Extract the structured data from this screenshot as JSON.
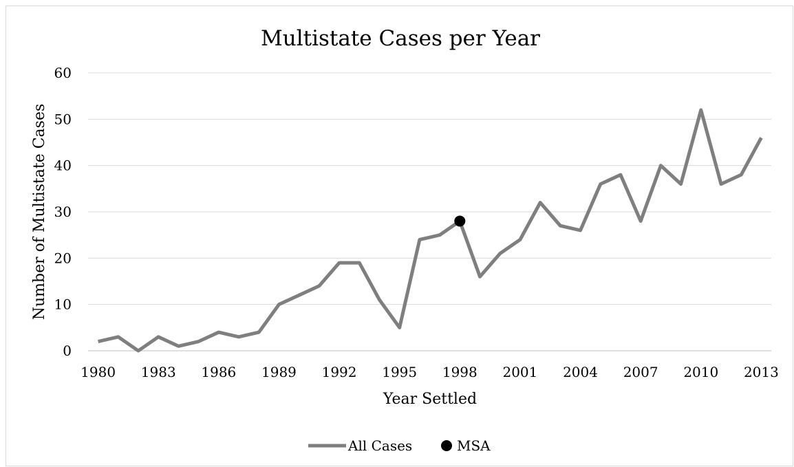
{
  "chart_data": {
    "type": "line",
    "title": "Multistate Cases per Year",
    "xlabel": "Year Settled",
    "ylabel": "Number of Multistate Cases",
    "x": [
      1980,
      1981,
      1982,
      1983,
      1984,
      1985,
      1986,
      1987,
      1988,
      1989,
      1990,
      1991,
      1992,
      1993,
      1994,
      1995,
      1996,
      1997,
      1998,
      1999,
      2000,
      2001,
      2002,
      2003,
      2004,
      2005,
      2006,
      2007,
      2008,
      2009,
      2010,
      2011,
      2012,
      2013
    ],
    "x_tick_labels": [
      "1980",
      "1983",
      "1986",
      "1989",
      "1992",
      "1995",
      "1998",
      "2001",
      "2004",
      "2007",
      "2010",
      "2013"
    ],
    "y_tick_labels": [
      "0",
      "10",
      "20",
      "30",
      "40",
      "50",
      "60"
    ],
    "ylim": [
      0,
      60
    ],
    "grid": "horizontal",
    "legend_position": "bottom",
    "series": [
      {
        "name": "All Cases",
        "color": "#7f7f7f",
        "marker": "none",
        "values": [
          2,
          3,
          0,
          3,
          1,
          2,
          4,
          3,
          4,
          10,
          12,
          14,
          19,
          19,
          11,
          5,
          24,
          25,
          28,
          16,
          21,
          24,
          32,
          27,
          26,
          36,
          38,
          28,
          40,
          36,
          52,
          36,
          38,
          46
        ]
      },
      {
        "name": "MSA",
        "color": "#000000",
        "marker": "circle",
        "points": [
          {
            "x": 1998,
            "y": 28
          }
        ]
      }
    ]
  }
}
